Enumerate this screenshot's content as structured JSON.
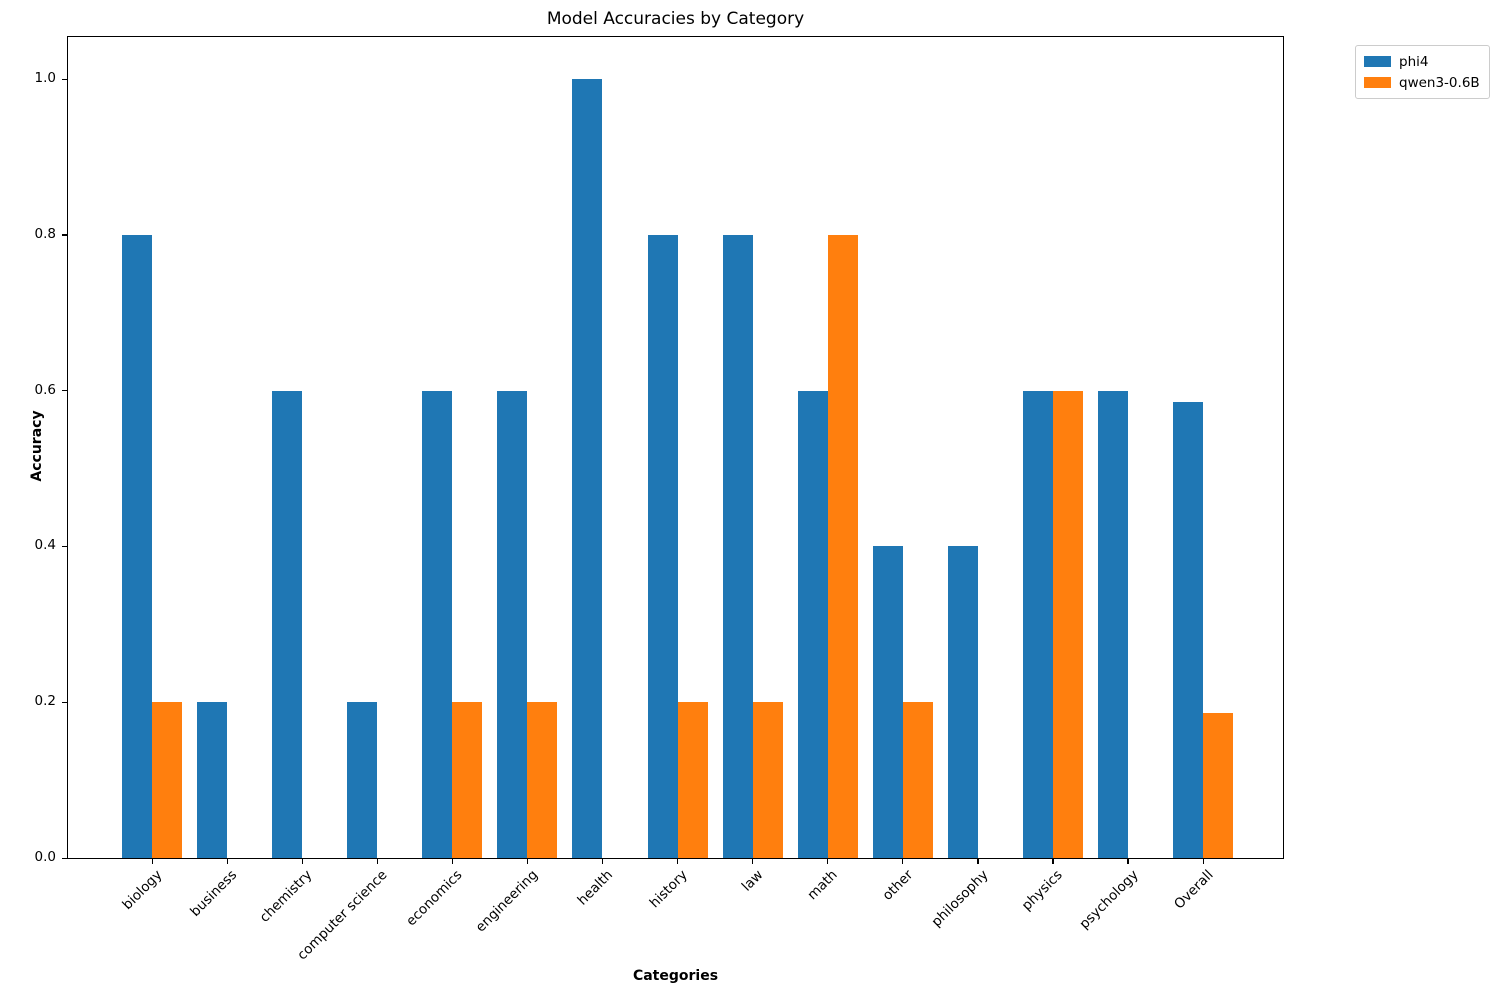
{
  "figure": {
    "title": "Model Accuracies by Category",
    "xlabel": "Categories",
    "ylabel": "Accuracy"
  },
  "legend": {
    "position": "upper-right-outside",
    "items": [
      {
        "label": "phi4",
        "color": "#1f77b4"
      },
      {
        "label": "qwen3-0.6B",
        "color": "#ff7f0e"
      }
    ]
  },
  "chart_data": {
    "type": "bar",
    "title": "Model Accuracies by Category",
    "xlabel": "Categories",
    "ylabel": "Accuracy",
    "categories": [
      "biology",
      "business",
      "chemistry",
      "computer science",
      "economics",
      "engineering",
      "health",
      "history",
      "law",
      "math",
      "other",
      "philosophy",
      "physics",
      "psychology",
      "Overall"
    ],
    "series": [
      {
        "name": "phi4",
        "color": "#1f77b4",
        "values": [
          0.8,
          0.2,
          0.6,
          0.2,
          0.6,
          0.6,
          1.0,
          0.8,
          0.8,
          0.6,
          0.4,
          0.4,
          0.6,
          0.6,
          0.586
        ]
      },
      {
        "name": "qwen3-0.6B",
        "color": "#ff7f0e",
        "values": [
          0.2,
          0.0,
          0.0,
          0.0,
          0.2,
          0.2,
          0.0,
          0.2,
          0.2,
          0.8,
          0.2,
          0.0,
          0.6,
          0.0,
          0.186
        ]
      }
    ],
    "yticks": [
      0.0,
      0.2,
      0.4,
      0.6,
      0.8,
      1.0
    ],
    "yticklabels": [
      "0.0",
      "0.2",
      "0.4",
      "0.6",
      "0.8",
      "1.0"
    ],
    "ylim": [
      0,
      1.056
    ],
    "bar_width": 0.4,
    "grid": false,
    "legend_position": "upper right outside",
    "xtick_rotation": 45
  }
}
